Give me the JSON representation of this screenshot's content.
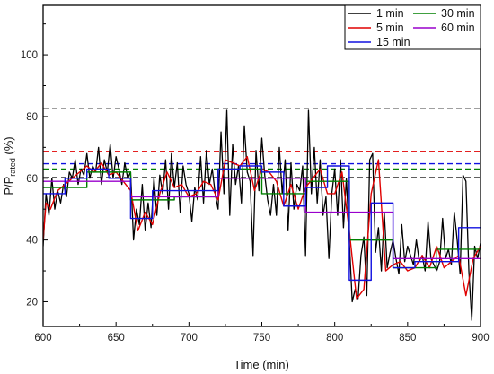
{
  "chart_data": {
    "type": "line",
    "xlabel": "Time (min)",
    "ylabel_main": "P/P",
    "ylabel_sub": "rated",
    "ylabel_unit": " (%)",
    "xlim": [
      600,
      900
    ],
    "ylim": [
      12,
      116
    ],
    "xticks": [
      600,
      650,
      700,
      750,
      800,
      850,
      900
    ],
    "yticks": [
      20,
      40,
      60,
      80,
      100
    ],
    "legend_position": "top-right",
    "series": [
      {
        "name": "1 min",
        "color": "#000000",
        "x": [
          600,
          602,
          604,
          606,
          608,
          610,
          612,
          614,
          616,
          618,
          620,
          622,
          624,
          626,
          628,
          630,
          632,
          634,
          636,
          638,
          640,
          642,
          644,
          646,
          648,
          650,
          652,
          654,
          656,
          658,
          660,
          662,
          664,
          666,
          668,
          670,
          672,
          674,
          676,
          678,
          680,
          682,
          684,
          686,
          688,
          690,
          692,
          694,
          696,
          698,
          700,
          702,
          704,
          706,
          708,
          710,
          712,
          714,
          716,
          718,
          720,
          722,
          724,
          726,
          728,
          730,
          732,
          734,
          736,
          738,
          740,
          742,
          744,
          746,
          748,
          750,
          752,
          754,
          756,
          758,
          760,
          762,
          764,
          766,
          768,
          770,
          772,
          774,
          776,
          778,
          780,
          782,
          784,
          786,
          788,
          790,
          792,
          794,
          796,
          798,
          800,
          802,
          804,
          806,
          808,
          810,
          812,
          814,
          816,
          818,
          820,
          822,
          824,
          826,
          828,
          830,
          832,
          834,
          836,
          838,
          840,
          842,
          844,
          846,
          848,
          850,
          852,
          854,
          856,
          858,
          860,
          862,
          864,
          866,
          868,
          870,
          872,
          874,
          876,
          878,
          880,
          882,
          884,
          886,
          888,
          890,
          892,
          894,
          896,
          898,
          900
        ],
        "values": [
          38,
          55,
          48,
          60,
          50,
          56,
          52,
          58,
          54,
          62,
          60,
          66,
          58,
          63,
          61,
          68,
          60,
          64,
          62,
          70,
          58,
          66,
          62,
          71,
          60,
          67,
          63,
          58,
          65,
          60,
          62,
          40,
          50,
          45,
          58,
          43,
          52,
          44,
          60,
          48,
          61,
          55,
          66,
          50,
          68,
          57,
          65,
          49,
          64,
          58,
          55,
          46,
          57,
          53,
          67,
          52,
          69,
          58,
          63,
          55,
          50,
          75,
          55,
          82,
          48,
          71,
          58,
          64,
          52,
          77,
          62,
          59,
          35,
          69,
          56,
          73,
          61,
          53,
          48,
          58,
          48,
          70,
          55,
          66,
          43,
          65,
          50,
          58,
          56,
          64,
          35,
          82,
          55,
          70,
          52,
          66,
          48,
          54,
          34,
          55,
          63,
          48,
          66,
          44,
          60,
          40,
          20,
          24,
          21,
          35,
          41,
          22,
          66,
          68,
          36,
          44,
          30,
          49,
          31,
          36,
          40,
          34,
          29,
          45,
          33,
          38,
          35,
          32,
          40,
          33,
          35,
          30,
          46,
          34,
          32,
          30,
          33,
          47,
          34,
          37,
          32,
          49,
          40,
          29,
          61,
          59,
          30,
          14,
          38,
          34,
          39
        ]
      },
      {
        "name": "5 min",
        "color": "#e00000",
        "x": [
          600,
          602,
          605,
          610,
          615,
          620,
          625,
          630,
          635,
          640,
          645,
          650,
          655,
          660,
          665,
          670,
          675,
          680,
          685,
          690,
          695,
          700,
          705,
          710,
          715,
          720,
          725,
          730,
          735,
          740,
          745,
          750,
          755,
          760,
          765,
          770,
          775,
          780,
          785,
          790,
          795,
          800,
          805,
          810,
          815,
          820,
          825,
          830,
          835,
          840,
          845,
          850,
          855,
          860,
          865,
          870,
          875,
          880,
          885,
          890,
          895,
          900
        ],
        "values": [
          40,
          52,
          50,
          56,
          58,
          60,
          62,
          64,
          62,
          65,
          61,
          62,
          59,
          56,
          43,
          49,
          45,
          55,
          62,
          57,
          58,
          54,
          55,
          59,
          58,
          53,
          66,
          65,
          64,
          67,
          56,
          63,
          62,
          59,
          51,
          58,
          50,
          57,
          60,
          63,
          55,
          55,
          62,
          43,
          21,
          24,
          55,
          66,
          30,
          32,
          33,
          30,
          31,
          35,
          31,
          38,
          31,
          33,
          35,
          22,
          34,
          38
        ]
      },
      {
        "name": "15 min",
        "color": "#1010e0",
        "x": [
          600,
          615,
          615,
          630,
          630,
          645,
          645,
          660,
          660,
          675,
          675,
          690,
          690,
          705,
          705,
          720,
          720,
          735,
          735,
          750,
          750,
          765,
          765,
          780,
          780,
          795,
          795,
          810,
          810,
          825,
          825,
          840,
          840,
          855,
          855,
          870,
          870,
          885,
          885,
          900
        ],
        "values": [
          55,
          55,
          60,
          60,
          63,
          63,
          60,
          60,
          47,
          47,
          56,
          56,
          56,
          56,
          56,
          56,
          63,
          63,
          64,
          64,
          62,
          62,
          51,
          51,
          57,
          57,
          64,
          64,
          27,
          27,
          52,
          52,
          31,
          31,
          33,
          33,
          33,
          33,
          44,
          44
        ]
      },
      {
        "name": "30 min",
        "color": "#008000",
        "x": [
          600,
          630,
          630,
          660,
          660,
          690,
          690,
          720,
          720,
          750,
          750,
          780,
          780,
          810,
          810,
          840,
          840,
          870,
          870,
          900
        ],
        "values": [
          57,
          57,
          62,
          62,
          53,
          53,
          54,
          54,
          63,
          63,
          55,
          55,
          59,
          59,
          40,
          40,
          31,
          31,
          37,
          37
        ]
      },
      {
        "name": "60 min",
        "color": "#9900cc",
        "x": [
          600,
          660,
          660,
          720,
          720,
          780,
          780,
          840,
          840,
          900
        ],
        "values": [
          59,
          59,
          54,
          54,
          60,
          60,
          49,
          49,
          34,
          34
        ]
      }
    ],
    "reference_lines": [
      {
        "y": 82.5,
        "color": "#000000"
      },
      {
        "y": 68.7,
        "color": "#e00000"
      },
      {
        "y": 64.7,
        "color": "#1010e0"
      },
      {
        "y": 63.0,
        "color": "#008000"
      },
      {
        "y": 60.2,
        "color": "#000000"
      }
    ]
  }
}
